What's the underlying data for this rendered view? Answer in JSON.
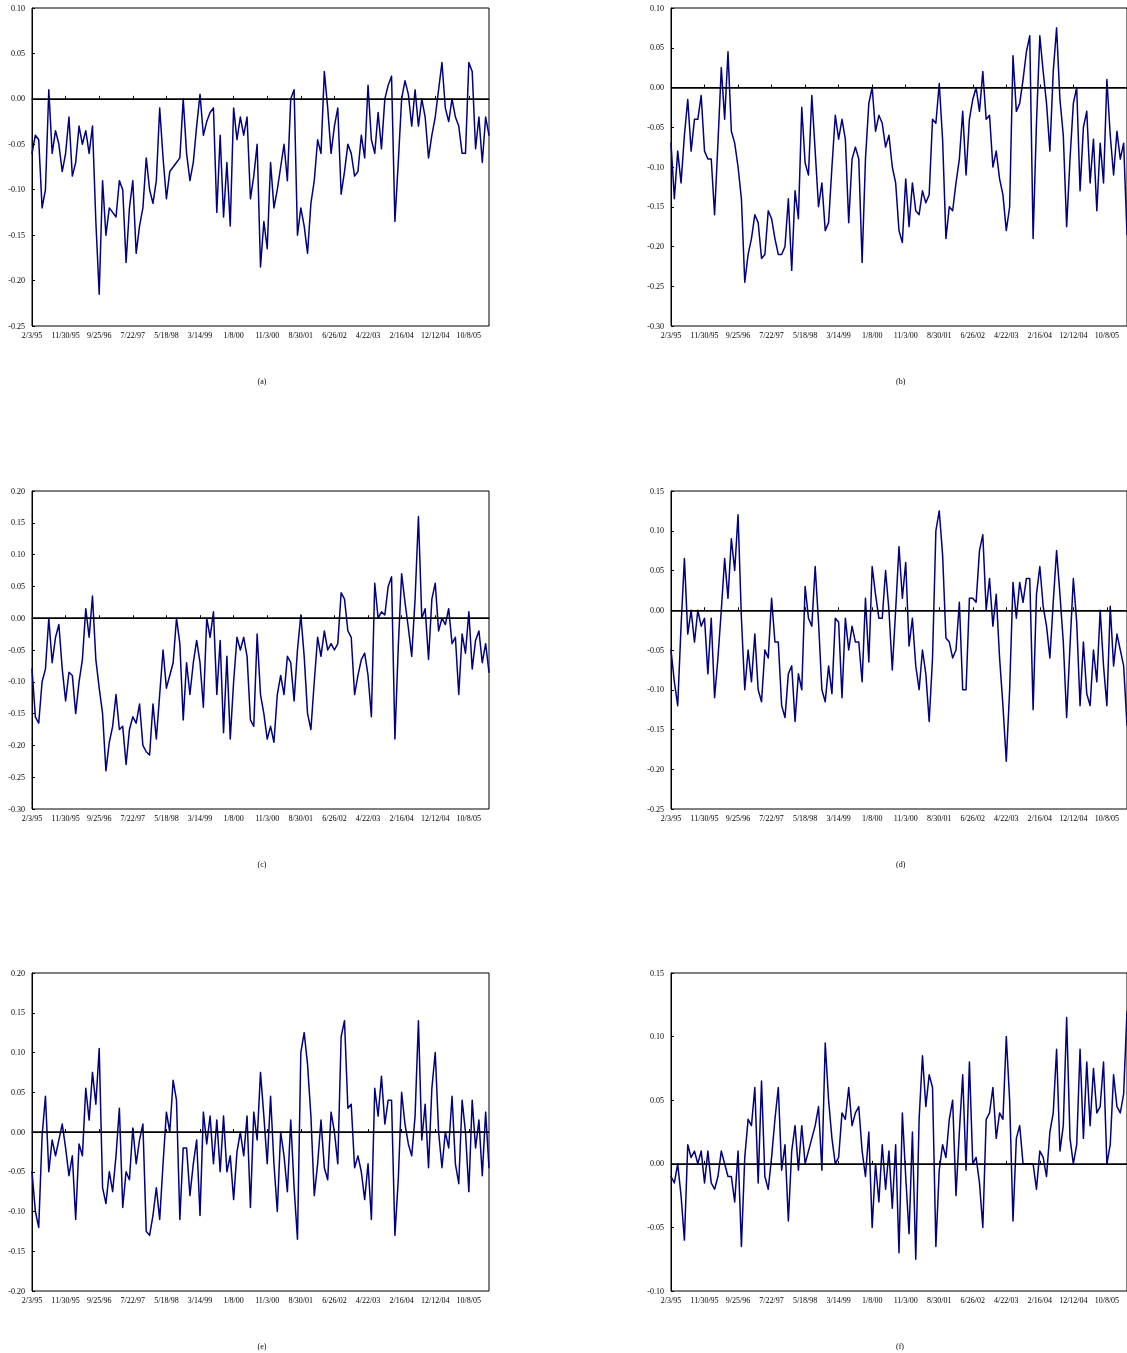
{
  "chart_data": [
    {
      "type": "line",
      "title": "(a)",
      "color": "#000080",
      "line_style": "solid",
      "marker": "none",
      "grid": false,
      "categories": [
        "2/3/95",
        null,
        null,
        null,
        null,
        null,
        null,
        null,
        null,
        null,
        "11/30/95",
        null,
        null,
        null,
        null,
        null,
        null,
        null,
        null,
        null,
        "9/25/96",
        null,
        null,
        null,
        null,
        null,
        null,
        null,
        null,
        null,
        "7/22/97",
        null,
        null,
        null,
        null,
        null,
        null,
        null,
        null,
        null,
        "5/18/98",
        null,
        null,
        null,
        null,
        null,
        null,
        null,
        null,
        null,
        "3/14/99",
        null,
        null,
        null,
        null,
        null,
        null,
        null,
        null,
        null,
        "1/8/00",
        null,
        null,
        null,
        null,
        null,
        null,
        null,
        null,
        null,
        "11/3/00",
        null,
        null,
        null,
        null,
        null,
        null,
        null,
        null,
        null,
        "8/30/01",
        null,
        null,
        null,
        null,
        null,
        null,
        null,
        null,
        null,
        "6/26/02",
        null,
        null,
        null,
        null,
        null,
        null,
        null,
        null,
        null,
        "4/22/03",
        null,
        null,
        null,
        null,
        null,
        null,
        null,
        null,
        null,
        "2/16/04",
        null,
        null,
        null,
        null,
        null,
        null,
        null,
        null,
        null,
        "12/12/04",
        null,
        null,
        null,
        null,
        null,
        null,
        null,
        null,
        null,
        "10/8/05",
        null,
        null,
        null,
        null,
        null,
        null
      ],
      "values": [
        -0.06,
        -0.04,
        -0.045,
        -0.12,
        -0.1,
        0.01,
        -0.06,
        -0.035,
        -0.05,
        -0.08,
        -0.06,
        -0.02,
        -0.085,
        -0.07,
        -0.03,
        -0.05,
        -0.035,
        -0.06,
        -0.03,
        -0.135,
        -0.215,
        -0.09,
        -0.15,
        -0.12,
        -0.125,
        -0.13,
        -0.09,
        -0.1,
        -0.18,
        -0.12,
        -0.09,
        -0.17,
        -0.14,
        -0.12,
        -0.065,
        -0.1,
        -0.115,
        -0.09,
        -0.01,
        -0.065,
        -0.11,
        -0.08,
        -0.075,
        -0.07,
        -0.065,
        0.0,
        -0.06,
        -0.09,
        -0.07,
        -0.03,
        0.005,
        -0.04,
        -0.025,
        -0.015,
        -0.01,
        -0.125,
        -0.04,
        -0.13,
        -0.07,
        -0.14,
        -0.01,
        -0.045,
        -0.02,
        -0.04,
        -0.02,
        -0.11,
        -0.085,
        -0.05,
        -0.185,
        -0.135,
        -0.165,
        -0.07,
        -0.12,
        -0.1,
        -0.075,
        -0.05,
        -0.09,
        0.0,
        0.01,
        -0.15,
        -0.12,
        -0.14,
        -0.17,
        -0.115,
        -0.09,
        -0.045,
        -0.06,
        0.03,
        -0.01,
        -0.06,
        -0.03,
        -0.01,
        -0.105,
        -0.08,
        -0.05,
        -0.06,
        -0.085,
        -0.08,
        -0.04,
        -0.065,
        0.015,
        -0.045,
        -0.06,
        -0.015,
        -0.055,
        0.0,
        0.015,
        0.025,
        -0.135,
        -0.07,
        0.0,
        0.02,
        0.005,
        -0.03,
        0.01,
        -0.03,
        0.0,
        -0.02,
        -0.065,
        -0.04,
        -0.02,
        0.01,
        0.04,
        -0.01,
        -0.025,
        0.0,
        -0.02,
        -0.03,
        -0.06,
        -0.06,
        0.04,
        0.03,
        -0.055,
        -0.02,
        -0.07,
        -0.02,
        -0.04
      ],
      "ylim": [
        -0.25,
        0.1
      ],
      "yticks": [
        {
          "value": -0.25,
          "label": "-0.25"
        },
        {
          "value": -0.2,
          "label": "-0.20"
        },
        {
          "value": -0.15,
          "label": "-0.15"
        },
        {
          "value": -0.1,
          "label": "-0.10"
        },
        {
          "value": -0.05,
          "label": "-0.05"
        },
        {
          "value": 0,
          "label": "0.00"
        },
        {
          "value": 0.05,
          "label": "0.05"
        },
        {
          "value": 0.1,
          "label": "0.10"
        }
      ],
      "ref_lines": [
        {
          "axis": "y",
          "value": 0,
          "color": "#000000"
        }
      ]
    },
    {
      "type": "line",
      "title": "(b)",
      "color": "#000080",
      "line_style": "solid",
      "marker": "none",
      "grid": false,
      "categories": [
        "2/3/95",
        null,
        null,
        null,
        null,
        null,
        null,
        null,
        null,
        null,
        "11/30/95",
        null,
        null,
        null,
        null,
        null,
        null,
        null,
        null,
        null,
        "9/25/96",
        null,
        null,
        null,
        null,
        null,
        null,
        null,
        null,
        null,
        "7/22/97",
        null,
        null,
        null,
        null,
        null,
        null,
        null,
        null,
        null,
        "5/18/98",
        null,
        null,
        null,
        null,
        null,
        null,
        null,
        null,
        null,
        "3/14/99",
        null,
        null,
        null,
        null,
        null,
        null,
        null,
        null,
        null,
        "1/8/00",
        null,
        null,
        null,
        null,
        null,
        null,
        null,
        null,
        null,
        "11/3/00",
        null,
        null,
        null,
        null,
        null,
        null,
        null,
        null,
        null,
        "8/30/01",
        null,
        null,
        null,
        null,
        null,
        null,
        null,
        null,
        null,
        "6/26/02",
        null,
        null,
        null,
        null,
        null,
        null,
        null,
        null,
        null,
        "4/22/03",
        null,
        null,
        null,
        null,
        null,
        null,
        null,
        null,
        null,
        "2/16/04",
        null,
        null,
        null,
        null,
        null,
        null,
        null,
        null,
        null,
        "12/12/04",
        null,
        null,
        null,
        null,
        null,
        null,
        null,
        null,
        null,
        "10/8/05",
        null,
        null,
        null,
        null,
        null,
        null
      ],
      "values": [
        -0.07,
        -0.14,
        -0.08,
        -0.12,
        -0.06,
        -0.015,
        -0.08,
        -0.04,
        -0.04,
        -0.01,
        -0.08,
        -0.09,
        -0.09,
        -0.16,
        -0.07,
        0.025,
        -0.04,
        0.045,
        -0.055,
        -0.07,
        -0.1,
        -0.14,
        -0.245,
        -0.21,
        -0.19,
        -0.16,
        -0.17,
        -0.215,
        -0.21,
        -0.155,
        -0.165,
        -0.19,
        -0.21,
        -0.21,
        -0.2,
        -0.14,
        -0.23,
        -0.13,
        -0.165,
        -0.025,
        -0.095,
        -0.11,
        -0.01,
        -0.08,
        -0.15,
        -0.12,
        -0.18,
        -0.17,
        -0.1,
        -0.035,
        -0.065,
        -0.04,
        -0.065,
        -0.17,
        -0.09,
        -0.075,
        -0.09,
        -0.22,
        -0.09,
        -0.02,
        0.0,
        -0.055,
        -0.035,
        -0.045,
        -0.075,
        -0.06,
        -0.1,
        -0.12,
        -0.18,
        -0.195,
        -0.115,
        -0.175,
        -0.12,
        -0.155,
        -0.16,
        -0.13,
        -0.145,
        -0.135,
        -0.04,
        -0.045,
        0.005,
        -0.065,
        -0.19,
        -0.15,
        -0.155,
        -0.12,
        -0.09,
        -0.03,
        -0.11,
        -0.04,
        -0.015,
        0.0,
        -0.03,
        0.02,
        -0.04,
        -0.035,
        -0.1,
        -0.08,
        -0.115,
        -0.135,
        -0.18,
        -0.15,
        0.04,
        -0.03,
        -0.02,
        0.01,
        0.045,
        0.065,
        -0.19,
        -0.045,
        0.065,
        0.02,
        -0.02,
        -0.08,
        0.02,
        0.075,
        -0.015,
        -0.06,
        -0.175,
        -0.09,
        -0.02,
        0.0,
        -0.13,
        -0.05,
        -0.03,
        -0.12,
        -0.065,
        -0.155,
        -0.07,
        -0.12,
        0.01,
        -0.06,
        -0.11,
        -0.055,
        -0.09,
        -0.07,
        -0.185
      ],
      "ylim": [
        -0.3,
        0.1
      ],
      "yticks": [
        {
          "value": -0.3,
          "label": "-0.30"
        },
        {
          "value": -0.25,
          "label": "-0.25"
        },
        {
          "value": -0.2,
          "label": "-0.20"
        },
        {
          "value": -0.15,
          "label": "-0.15"
        },
        {
          "value": -0.1,
          "label": "-0.10"
        },
        {
          "value": -0.05,
          "label": "-0.05"
        },
        {
          "value": 0,
          "label": "0.00"
        },
        {
          "value": 0.05,
          "label": "0.05"
        },
        {
          "value": 0.1,
          "label": "0.10"
        }
      ],
      "ref_lines": [
        {
          "axis": "y",
          "value": 0,
          "color": "#000000"
        }
      ]
    },
    {
      "type": "line",
      "title": "(c)",
      "color": "#000080",
      "line_style": "solid",
      "marker": "none",
      "grid": false,
      "categories": [
        "2/3/95",
        null,
        null,
        null,
        null,
        null,
        null,
        null,
        null,
        null,
        "11/30/95",
        null,
        null,
        null,
        null,
        null,
        null,
        null,
        null,
        null,
        "9/25/96",
        null,
        null,
        null,
        null,
        null,
        null,
        null,
        null,
        null,
        "7/22/97",
        null,
        null,
        null,
        null,
        null,
        null,
        null,
        null,
        null,
        "5/18/98",
        null,
        null,
        null,
        null,
        null,
        null,
        null,
        null,
        null,
        "3/14/99",
        null,
        null,
        null,
        null,
        null,
        null,
        null,
        null,
        null,
        "1/8/00",
        null,
        null,
        null,
        null,
        null,
        null,
        null,
        null,
        null,
        "11/3/00",
        null,
        null,
        null,
        null,
        null,
        null,
        null,
        null,
        null,
        "8/30/01",
        null,
        null,
        null,
        null,
        null,
        null,
        null,
        null,
        null,
        "6/26/02",
        null,
        null,
        null,
        null,
        null,
        null,
        null,
        null,
        null,
        "4/22/03",
        null,
        null,
        null,
        null,
        null,
        null,
        null,
        null,
        null,
        "2/16/04",
        null,
        null,
        null,
        null,
        null,
        null,
        null,
        null,
        null,
        "12/12/04",
        null,
        null,
        null,
        null,
        null,
        null,
        null,
        null,
        null,
        "10/8/05",
        null,
        null,
        null,
        null,
        null,
        null
      ],
      "values": [
        -0.08,
        -0.155,
        -0.165,
        -0.1,
        -0.08,
        0.0,
        -0.07,
        -0.03,
        -0.01,
        -0.08,
        -0.13,
        -0.085,
        -0.09,
        -0.15,
        -0.1,
        -0.065,
        0.015,
        -0.03,
        0.035,
        -0.065,
        -0.11,
        -0.15,
        -0.24,
        -0.195,
        -0.17,
        -0.12,
        -0.175,
        -0.17,
        -0.23,
        -0.175,
        -0.155,
        -0.165,
        -0.135,
        -0.2,
        -0.21,
        -0.215,
        -0.135,
        -0.19,
        -0.12,
        -0.05,
        -0.11,
        -0.09,
        -0.07,
        0.0,
        -0.04,
        -0.16,
        -0.07,
        -0.12,
        -0.07,
        -0.035,
        -0.07,
        -0.14,
        0.0,
        -0.03,
        0.01,
        -0.12,
        -0.035,
        -0.18,
        -0.06,
        -0.19,
        -0.1,
        -0.03,
        -0.05,
        -0.03,
        -0.06,
        -0.16,
        -0.17,
        -0.025,
        -0.12,
        -0.15,
        -0.19,
        -0.17,
        -0.195,
        -0.12,
        -0.09,
        -0.12,
        -0.06,
        -0.07,
        -0.13,
        -0.05,
        0.005,
        -0.06,
        -0.15,
        -0.175,
        -0.1,
        -0.03,
        -0.06,
        -0.02,
        -0.05,
        -0.04,
        -0.05,
        -0.04,
        0.04,
        0.03,
        -0.02,
        -0.03,
        -0.12,
        -0.09,
        -0.065,
        -0.055,
        -0.09,
        -0.155,
        0.055,
        0.0,
        0.01,
        0.005,
        0.05,
        0.065,
        -0.19,
        -0.045,
        0.07,
        0.025,
        -0.015,
        -0.06,
        0.03,
        0.16,
        0.0,
        0.015,
        -0.065,
        0.03,
        0.055,
        -0.02,
        0.0,
        -0.01,
        0.015,
        -0.04,
        -0.03,
        -0.12,
        -0.025,
        -0.055,
        0.01,
        -0.08,
        -0.035,
        -0.02,
        -0.07,
        -0.04,
        -0.085
      ],
      "ylim": [
        -0.3,
        0.2
      ],
      "yticks": [
        {
          "value": -0.3,
          "label": "-0.30"
        },
        {
          "value": -0.25,
          "label": "-0.25"
        },
        {
          "value": -0.2,
          "label": "-0.20"
        },
        {
          "value": -0.15,
          "label": "-0.15"
        },
        {
          "value": -0.1,
          "label": "-0.10"
        },
        {
          "value": -0.05,
          "label": "-0.05"
        },
        {
          "value": 0,
          "label": "0.00"
        },
        {
          "value": 0.05,
          "label": "0.05"
        },
        {
          "value": 0.1,
          "label": "0.10"
        },
        {
          "value": 0.15,
          "label": "0.15"
        },
        {
          "value": 0.2,
          "label": "0.20"
        }
      ],
      "ref_lines": [
        {
          "axis": "y",
          "value": 0,
          "color": "#000000"
        }
      ]
    },
    {
      "type": "line",
      "title": "(d)",
      "color": "#000080",
      "line_style": "solid",
      "marker": "none",
      "grid": false,
      "categories": [
        "2/3/95",
        null,
        null,
        null,
        null,
        null,
        null,
        null,
        null,
        null,
        "11/30/95",
        null,
        null,
        null,
        null,
        null,
        null,
        null,
        null,
        null,
        "9/25/96",
        null,
        null,
        null,
        null,
        null,
        null,
        null,
        null,
        null,
        "7/22/97",
        null,
        null,
        null,
        null,
        null,
        null,
        null,
        null,
        null,
        "5/18/98",
        null,
        null,
        null,
        null,
        null,
        null,
        null,
        null,
        null,
        "3/14/99",
        null,
        null,
        null,
        null,
        null,
        null,
        null,
        null,
        null,
        "1/8/00",
        null,
        null,
        null,
        null,
        null,
        null,
        null,
        null,
        null,
        "11/3/00",
        null,
        null,
        null,
        null,
        null,
        null,
        null,
        null,
        null,
        "8/30/01",
        null,
        null,
        null,
        null,
        null,
        null,
        null,
        null,
        null,
        "6/26/02",
        null,
        null,
        null,
        null,
        null,
        null,
        null,
        null,
        null,
        "4/22/03",
        null,
        null,
        null,
        null,
        null,
        null,
        null,
        null,
        null,
        "2/16/04",
        null,
        null,
        null,
        null,
        null,
        null,
        null,
        null,
        null,
        "12/12/04",
        null,
        null,
        null,
        null,
        null,
        null,
        null,
        null,
        null,
        "10/8/05",
        null,
        null,
        null,
        null,
        null,
        null
      ],
      "values": [
        -0.05,
        -0.09,
        -0.12,
        -0.02,
        0.065,
        -0.03,
        0.0,
        -0.04,
        0.0,
        -0.02,
        -0.01,
        -0.08,
        -0.01,
        -0.11,
        -0.06,
        0.0,
        0.065,
        0.015,
        0.09,
        0.05,
        0.12,
        -0.01,
        -0.1,
        -0.05,
        -0.09,
        -0.03,
        -0.1,
        -0.115,
        -0.05,
        -0.06,
        0.015,
        -0.04,
        -0.04,
        -0.12,
        -0.135,
        -0.08,
        -0.07,
        -0.14,
        -0.08,
        -0.1,
        0.03,
        -0.01,
        -0.02,
        0.055,
        -0.015,
        -0.1,
        -0.115,
        -0.07,
        -0.105,
        -0.01,
        -0.015,
        -0.11,
        -0.01,
        -0.05,
        -0.02,
        -0.04,
        -0.04,
        -0.09,
        0.015,
        -0.065,
        0.055,
        0.02,
        -0.01,
        -0.01,
        0.05,
        0.0,
        -0.075,
        0.0,
        0.08,
        0.015,
        0.06,
        -0.045,
        -0.01,
        -0.07,
        -0.1,
        -0.05,
        -0.08,
        -0.14,
        -0.06,
        0.1,
        0.125,
        0.07,
        -0.035,
        -0.04,
        -0.06,
        -0.05,
        0.01,
        -0.1,
        -0.1,
        0.015,
        0.015,
        0.01,
        0.075,
        0.095,
        0.0,
        0.04,
        -0.02,
        0.02,
        -0.06,
        -0.12,
        -0.19,
        -0.1,
        0.035,
        -0.01,
        0.035,
        0.01,
        0.04,
        0.04,
        -0.125,
        0.02,
        0.055,
        0.005,
        -0.02,
        -0.06,
        0.01,
        0.075,
        0.02,
        -0.04,
        -0.135,
        -0.045,
        0.04,
        -0.015,
        -0.12,
        -0.04,
        -0.105,
        -0.12,
        -0.05,
        -0.09,
        0.0,
        -0.07,
        -0.12,
        0.005,
        -0.07,
        -0.03,
        -0.05,
        -0.07,
        -0.145
      ],
      "ylim": [
        -0.25,
        0.15
      ],
      "yticks": [
        {
          "value": -0.25,
          "label": "-0.25"
        },
        {
          "value": -0.2,
          "label": "-0.20"
        },
        {
          "value": -0.15,
          "label": "-0.15"
        },
        {
          "value": -0.1,
          "label": "-0.10"
        },
        {
          "value": -0.05,
          "label": "-0.05"
        },
        {
          "value": 0,
          "label": "0.00"
        },
        {
          "value": 0.05,
          "label": "0.05"
        },
        {
          "value": 0.1,
          "label": "0.10"
        },
        {
          "value": 0.15,
          "label": "0.15"
        }
      ],
      "ref_lines": [
        {
          "axis": "y",
          "value": 0,
          "color": "#000000"
        }
      ]
    },
    {
      "type": "line",
      "title": "(e)",
      "color": "#000080",
      "line_style": "solid",
      "marker": "none",
      "grid": false,
      "categories": [
        "2/3/95",
        null,
        null,
        null,
        null,
        null,
        null,
        null,
        null,
        null,
        "11/30/95",
        null,
        null,
        null,
        null,
        null,
        null,
        null,
        null,
        null,
        "9/25/96",
        null,
        null,
        null,
        null,
        null,
        null,
        null,
        null,
        null,
        "7/22/97",
        null,
        null,
        null,
        null,
        null,
        null,
        null,
        null,
        null,
        "5/18/98",
        null,
        null,
        null,
        null,
        null,
        null,
        null,
        null,
        null,
        "3/14/99",
        null,
        null,
        null,
        null,
        null,
        null,
        null,
        null,
        null,
        "1/8/00",
        null,
        null,
        null,
        null,
        null,
        null,
        null,
        null,
        null,
        "11/3/00",
        null,
        null,
        null,
        null,
        null,
        null,
        null,
        null,
        null,
        "8/30/01",
        null,
        null,
        null,
        null,
        null,
        null,
        null,
        null,
        null,
        "6/26/02",
        null,
        null,
        null,
        null,
        null,
        null,
        null,
        null,
        null,
        "4/22/03",
        null,
        null,
        null,
        null,
        null,
        null,
        null,
        null,
        null,
        "2/16/04",
        null,
        null,
        null,
        null,
        null,
        null,
        null,
        null,
        null,
        "12/12/04",
        null,
        null,
        null,
        null,
        null,
        null,
        null,
        null,
        null,
        "10/8/05",
        null,
        null,
        null,
        null,
        null,
        null
      ],
      "values": [
        -0.05,
        -0.1,
        -0.12,
        -0.005,
        0.045,
        -0.05,
        -0.01,
        -0.03,
        -0.01,
        0.01,
        -0.02,
        -0.055,
        -0.03,
        -0.11,
        -0.015,
        -0.03,
        0.055,
        0.015,
        0.075,
        0.035,
        0.105,
        -0.07,
        -0.09,
        -0.05,
        -0.075,
        -0.03,
        0.03,
        -0.095,
        -0.05,
        -0.06,
        0.005,
        -0.04,
        -0.01,
        0.01,
        -0.125,
        -0.13,
        -0.105,
        -0.07,
        -0.11,
        -0.04,
        0.025,
        0.0,
        0.065,
        0.04,
        -0.11,
        -0.02,
        -0.02,
        -0.08,
        -0.04,
        -0.01,
        -0.105,
        0.025,
        -0.015,
        0.02,
        -0.04,
        0.015,
        -0.05,
        0.02,
        -0.05,
        -0.03,
        -0.085,
        -0.025,
        0.0,
        -0.03,
        0.02,
        -0.095,
        0.025,
        -0.01,
        0.075,
        0.02,
        -0.04,
        0.045,
        -0.04,
        -0.1,
        0.0,
        -0.03,
        -0.075,
        0.015,
        -0.07,
        -0.135,
        0.1,
        0.125,
        0.085,
        0.02,
        -0.08,
        -0.04,
        0.015,
        -0.045,
        -0.06,
        0.025,
        0.0,
        -0.04,
        0.12,
        0.14,
        0.03,
        0.035,
        -0.045,
        -0.03,
        -0.05,
        -0.085,
        -0.04,
        -0.11,
        0.055,
        0.02,
        0.07,
        0.01,
        0.04,
        0.04,
        -0.13,
        -0.06,
        0.05,
        0.01,
        -0.015,
        -0.03,
        0.02,
        0.14,
        -0.01,
        0.035,
        -0.045,
        0.055,
        0.1,
        0.0,
        -0.045,
        0.0,
        -0.02,
        0.045,
        -0.04,
        -0.065,
        0.04,
        0.0,
        -0.075,
        0.04,
        -0.02,
        0.015,
        -0.055,
        0.025,
        -0.045
      ],
      "ylim": [
        -0.2,
        0.2
      ],
      "yticks": [
        {
          "value": -0.2,
          "label": "-0.20"
        },
        {
          "value": -0.15,
          "label": "-0.15"
        },
        {
          "value": -0.1,
          "label": "-0.10"
        },
        {
          "value": -0.05,
          "label": "-0.05"
        },
        {
          "value": 0,
          "label": "0.00"
        },
        {
          "value": 0.05,
          "label": "0.05"
        },
        {
          "value": 0.1,
          "label": "0.10"
        },
        {
          "value": 0.15,
          "label": "0.15"
        },
        {
          "value": 0.2,
          "label": "0.20"
        }
      ],
      "ref_lines": [
        {
          "axis": "y",
          "value": 0,
          "color": "#000000"
        }
      ]
    },
    {
      "type": "line",
      "title": "(f)",
      "color": "#000080",
      "line_style": "solid",
      "marker": "none",
      "grid": false,
      "categories": [
        "2/3/95",
        null,
        null,
        null,
        null,
        null,
        null,
        null,
        null,
        null,
        "11/30/95",
        null,
        null,
        null,
        null,
        null,
        null,
        null,
        null,
        null,
        "9/25/96",
        null,
        null,
        null,
        null,
        null,
        null,
        null,
        null,
        null,
        "7/22/97",
        null,
        null,
        null,
        null,
        null,
        null,
        null,
        null,
        null,
        "5/18/98",
        null,
        null,
        null,
        null,
        null,
        null,
        null,
        null,
        null,
        "3/14/99",
        null,
        null,
        null,
        null,
        null,
        null,
        null,
        null,
        null,
        "1/8/00",
        null,
        null,
        null,
        null,
        null,
        null,
        null,
        null,
        null,
        "11/3/00",
        null,
        null,
        null,
        null,
        null,
        null,
        null,
        null,
        null,
        "8/30/01",
        null,
        null,
        null,
        null,
        null,
        null,
        null,
        null,
        null,
        "6/26/02",
        null,
        null,
        null,
        null,
        null,
        null,
        null,
        null,
        null,
        "4/22/03",
        null,
        null,
        null,
        null,
        null,
        null,
        null,
        null,
        null,
        "2/16/04",
        null,
        null,
        null,
        null,
        null,
        null,
        null,
        null,
        null,
        "12/12/04",
        null,
        null,
        null,
        null,
        null,
        null,
        null,
        null,
        null,
        "10/8/05",
        null,
        null,
        null,
        null,
        null,
        null
      ],
      "values": [
        -0.01,
        -0.015,
        0.0,
        -0.025,
        -0.06,
        0.015,
        0.005,
        0.01,
        0.0,
        0.01,
        -0.015,
        0.01,
        -0.015,
        -0.02,
        -0.01,
        0.01,
        0.0,
        -0.01,
        -0.01,
        -0.03,
        0.01,
        -0.065,
        0.005,
        0.035,
        0.03,
        0.06,
        -0.015,
        0.065,
        -0.01,
        -0.02,
        0.005,
        0.035,
        0.06,
        -0.005,
        0.015,
        -0.045,
        0.01,
        0.03,
        -0.005,
        0.03,
        0.0,
        0.01,
        0.02,
        0.03,
        0.045,
        -0.005,
        0.095,
        0.05,
        0.02,
        0.0,
        0.005,
        0.04,
        0.035,
        0.06,
        0.03,
        0.04,
        0.045,
        0.01,
        -0.01,
        0.025,
        -0.05,
        0.0,
        -0.03,
        0.015,
        -0.02,
        0.01,
        -0.035,
        0.015,
        -0.07,
        0.04,
        -0.01,
        -0.055,
        0.025,
        -0.075,
        0.035,
        0.085,
        0.045,
        0.07,
        0.06,
        -0.065,
        -0.005,
        0.015,
        0.005,
        0.035,
        0.05,
        -0.025,
        0.025,
        0.07,
        -0.005,
        0.08,
        0.0,
        0.005,
        -0.015,
        -0.05,
        0.035,
        0.04,
        0.06,
        0.02,
        0.04,
        0.035,
        0.1,
        0.05,
        -0.045,
        0.02,
        0.03,
        0.0,
        0.0,
        0.0,
        0.0,
        -0.02,
        0.01,
        0.005,
        -0.01,
        0.025,
        0.04,
        0.09,
        0.01,
        0.03,
        0.115,
        0.02,
        0.0,
        0.015,
        0.09,
        0.02,
        0.08,
        0.03,
        0.075,
        0.04,
        0.045,
        0.08,
        0.0,
        0.015,
        0.07,
        0.045,
        0.04,
        0.055,
        0.12
      ],
      "ylim": [
        -0.1,
        0.15
      ],
      "yticks": [
        {
          "value": -0.1,
          "label": "-0.10"
        },
        {
          "value": -0.05,
          "label": "-0.05"
        },
        {
          "value": 0,
          "label": "0.00"
        },
        {
          "value": 0.05,
          "label": "0.05"
        },
        {
          "value": 0.1,
          "label": "0.10"
        },
        {
          "value": 0.15,
          "label": "0.15"
        }
      ],
      "ref_lines": [
        {
          "axis": "y",
          "value": 0,
          "color": "#000000"
        }
      ]
    }
  ]
}
